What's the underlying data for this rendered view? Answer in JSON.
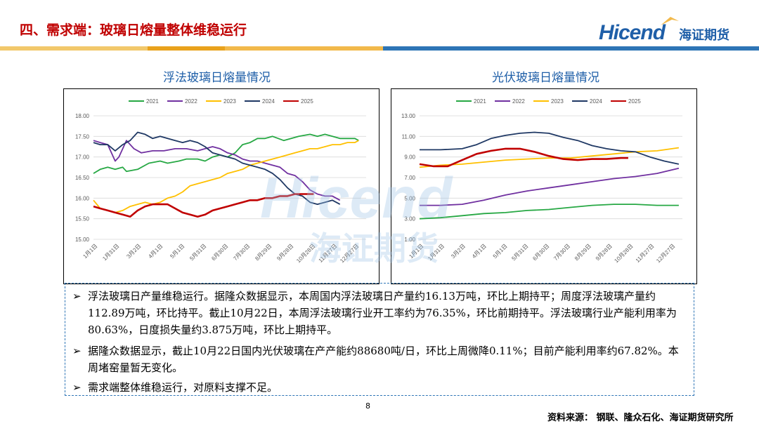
{
  "header": {
    "title": "四、需求端：玻璃日熔量整体维稳运行",
    "logo_text": "Hicend",
    "logo_cn": "海证期货",
    "band_colors": [
      "#f2b94b",
      "#e9a21c",
      "#2e75b6",
      "#1f4e79"
    ]
  },
  "charts": {
    "left_title": "浮法玻璃日熔量情况",
    "right_title": "光伏玻璃日熔量情况"
  },
  "chart_data": [
    {
      "type": "line",
      "title": "浮法玻璃日熔量情况",
      "x_tick_labels": [
        "1月1日",
        "1月31日",
        "3月2日",
        "4月1日",
        "5月1日",
        "5月31日",
        "6月30日",
        "7月30日",
        "8月29日",
        "9月28日",
        "10月28日",
        "11月27日",
        "12月27日"
      ],
      "ylim": [
        15.0,
        18.0
      ],
      "y_tick_labels": [
        "15.00",
        "15.50",
        "16.00",
        "16.50",
        "17.00",
        "17.50",
        "18.00"
      ],
      "legend": [
        "2021",
        "2022",
        "2023",
        "2024",
        "2025"
      ],
      "colors": [
        "#27a844",
        "#7030a0",
        "#ffc000",
        "#1f3864",
        "#c00000"
      ],
      "series": [
        {
          "name": "2021",
          "x": [
            1,
            10,
            20,
            30,
            40,
            45,
            60,
            75,
            90,
            100,
            115,
            125,
            140,
            150,
            160,
            170,
            180,
            190,
            200,
            210,
            220,
            230,
            240,
            255,
            265,
            275,
            290,
            300,
            310,
            320,
            330,
            340,
            350,
            355
          ],
          "values": [
            16.6,
            16.7,
            16.75,
            16.7,
            16.75,
            16.65,
            16.7,
            16.85,
            16.9,
            16.85,
            16.9,
            16.95,
            16.95,
            16.9,
            17.0,
            17.05,
            17.0,
            17.1,
            17.3,
            17.35,
            17.45,
            17.45,
            17.5,
            17.4,
            17.45,
            17.5,
            17.55,
            17.5,
            17.55,
            17.5,
            17.45,
            17.45,
            17.45,
            17.4
          ]
        },
        {
          "name": "2022",
          "x": [
            1,
            10,
            20,
            30,
            35,
            45,
            55,
            65,
            80,
            95,
            110,
            125,
            140,
            150,
            160,
            170,
            180,
            190,
            200,
            210,
            220,
            230,
            240,
            250,
            260,
            270,
            280,
            290,
            300,
            310,
            320,
            330
          ],
          "values": [
            17.4,
            17.35,
            17.3,
            16.9,
            17.0,
            17.4,
            17.2,
            17.1,
            17.15,
            17.15,
            17.2,
            17.2,
            17.15,
            17.2,
            17.25,
            17.2,
            17.1,
            17.05,
            16.95,
            16.9,
            16.9,
            16.85,
            16.8,
            16.75,
            16.6,
            16.55,
            16.4,
            16.2,
            16.1,
            16.05,
            16.05,
            15.95
          ]
        },
        {
          "name": "2023",
          "x": [
            1,
            10,
            20,
            30,
            40,
            50,
            60,
            70,
            80,
            90,
            100,
            110,
            120,
            130,
            140,
            150,
            160,
            170,
            180,
            190,
            200,
            210,
            220,
            230,
            240,
            250,
            260,
            270,
            280,
            290,
            300,
            310,
            320,
            330,
            340,
            350,
            355
          ],
          "values": [
            15.95,
            15.75,
            15.7,
            15.65,
            15.7,
            15.8,
            15.85,
            15.9,
            15.85,
            15.9,
            16.0,
            16.05,
            16.15,
            16.3,
            16.35,
            16.4,
            16.45,
            16.5,
            16.6,
            16.65,
            16.7,
            16.8,
            16.85,
            16.9,
            16.95,
            17.0,
            17.05,
            17.1,
            17.15,
            17.2,
            17.2,
            17.25,
            17.3,
            17.3,
            17.35,
            17.35,
            17.4
          ]
        },
        {
          "name": "2024",
          "x": [
            1,
            10,
            20,
            30,
            40,
            50,
            60,
            70,
            80,
            90,
            100,
            110,
            120,
            130,
            140,
            150,
            160,
            170,
            180,
            190,
            200,
            210,
            220,
            230,
            240,
            250,
            260,
            270,
            280,
            290,
            300,
            310,
            320,
            330
          ],
          "values": [
            17.35,
            17.3,
            17.3,
            17.15,
            17.3,
            17.4,
            17.6,
            17.55,
            17.45,
            17.5,
            17.45,
            17.4,
            17.35,
            17.4,
            17.35,
            17.25,
            17.1,
            17.05,
            17.0,
            16.95,
            16.85,
            16.8,
            16.75,
            16.7,
            16.6,
            16.45,
            16.25,
            16.1,
            16.05,
            15.9,
            15.85,
            15.9,
            15.95,
            15.85
          ]
        },
        {
          "name": "2025",
          "x": [
            1,
            10,
            20,
            30,
            40,
            50,
            60,
            70,
            80,
            90,
            100,
            110,
            120,
            130,
            140,
            150,
            160,
            170,
            180,
            190,
            200,
            210,
            220,
            230,
            240,
            250,
            260,
            270,
            280,
            290,
            295
          ],
          "values": [
            15.8,
            15.75,
            15.7,
            15.65,
            15.6,
            15.55,
            15.7,
            15.8,
            15.85,
            15.85,
            15.85,
            15.75,
            15.65,
            15.6,
            15.55,
            15.6,
            15.7,
            15.75,
            15.8,
            15.85,
            15.9,
            15.95,
            15.95,
            16.0,
            16.0,
            16.05,
            16.05,
            16.1,
            16.1,
            16.1,
            16.1
          ]
        }
      ]
    },
    {
      "type": "line",
      "title": "光伏玻璃日熔量情况",
      "x_tick_labels": [
        "1月1日",
        "1月31日",
        "3月2日",
        "4月1日",
        "5月1日",
        "5月31日",
        "6月30日",
        "7月30日",
        "8月29日",
        "9月28日",
        "10月28日",
        "11月27日",
        "12月27日"
      ],
      "ylim": [
        1.0,
        13.0
      ],
      "y_tick_labels": [
        "1.00",
        "3.00",
        "5.00",
        "7.00",
        "9.00",
        "11.00",
        "13.00"
      ],
      "legend": [
        "2021",
        "2022",
        "2023",
        "2024",
        "2025"
      ],
      "colors": [
        "#27a844",
        "#7030a0",
        "#ffc000",
        "#1f3864",
        "#c00000"
      ],
      "series": [
        {
          "name": "2021",
          "x": [
            1,
            30,
            60,
            90,
            120,
            150,
            180,
            210,
            240,
            270,
            300,
            330,
            360
          ],
          "values": [
            3.0,
            3.1,
            3.3,
            3.5,
            3.6,
            3.8,
            3.9,
            4.1,
            4.3,
            4.4,
            4.4,
            4.3,
            4.3
          ]
        },
        {
          "name": "2022",
          "x": [
            1,
            30,
            60,
            90,
            120,
            150,
            180,
            210,
            240,
            270,
            300,
            330,
            360
          ],
          "values": [
            4.3,
            4.3,
            4.4,
            4.8,
            5.3,
            5.7,
            6.0,
            6.3,
            6.6,
            6.9,
            7.1,
            7.4,
            7.9
          ]
        },
        {
          "name": "2023",
          "x": [
            1,
            30,
            60,
            90,
            120,
            150,
            180,
            210,
            240,
            270,
            300,
            330,
            360
          ],
          "values": [
            8.0,
            8.2,
            8.3,
            8.5,
            8.7,
            8.8,
            8.9,
            8.9,
            9.1,
            9.3,
            9.5,
            9.6,
            9.9
          ]
        },
        {
          "name": "2024",
          "x": [
            1,
            30,
            60,
            80,
            100,
            120,
            140,
            160,
            180,
            200,
            220,
            240,
            260,
            280,
            300,
            320,
            340,
            360
          ],
          "values": [
            9.7,
            9.7,
            9.8,
            10.2,
            10.8,
            11.1,
            11.3,
            11.4,
            11.3,
            10.9,
            10.6,
            10.1,
            9.8,
            9.6,
            9.5,
            9.0,
            8.6,
            8.3
          ]
        },
        {
          "name": "2025",
          "x": [
            1,
            20,
            40,
            60,
            80,
            100,
            120,
            140,
            160,
            180,
            200,
            220,
            240,
            260,
            280,
            290
          ],
          "values": [
            8.3,
            8.1,
            8.1,
            8.7,
            9.3,
            9.6,
            9.8,
            9.8,
            9.5,
            9.1,
            8.8,
            8.7,
            8.8,
            8.8,
            8.9,
            8.9
          ]
        }
      ]
    }
  ],
  "bullets": [
    {
      "mark": "➢",
      "text": "浮法玻璃日产量维稳运行。据隆众数据显示，本周国内浮法玻璃日产量约16.13万吨，环比上期持平；周度浮法玻璃产量约112.89万吨，环比持平。截止10月22日，本周浮法玻璃行业开工率约为76.35%，环比前期持平。浮法玻璃行业产能利用率为80.63%，日度损失量约3.875万吨，环比上期持平。"
    },
    {
      "mark": "➢",
      "text": "据隆众数据显示，截止10月22日国内光伏玻璃在产产能约88680吨/日，环比上周微降0.11%；目前产能利用率约67.82%。本周堵窑量暂无变化。"
    },
    {
      "mark": "➢",
      "text": "需求端整体维稳运行，对原料支撑不足。"
    }
  ],
  "footer": {
    "page_number": "8",
    "source": "资料来源：  钢联、隆众石化、海证期货研究所"
  }
}
